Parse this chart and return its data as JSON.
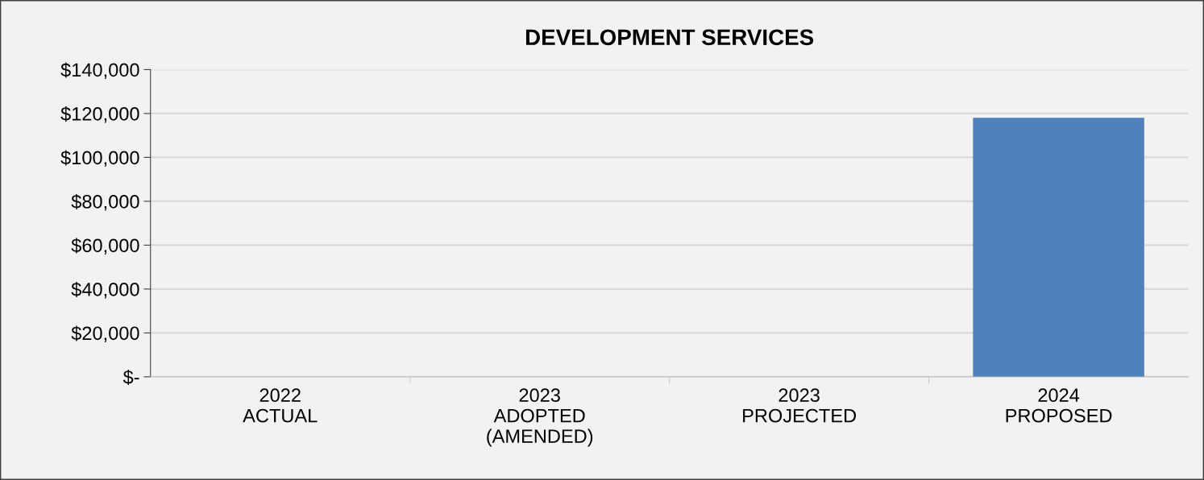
{
  "chart_data": {
    "type": "bar",
    "title": "DEVELOPMENT SERVICES",
    "categories": [
      "2022\nACTUAL",
      "2023\nADOPTED\n(AMENDED)",
      "2023\nPROJECTED",
      "2024\nPROPOSED"
    ],
    "values": [
      0,
      0,
      0,
      118000
    ],
    "color": "#4f81bd",
    "ylim": [
      0,
      140000
    ],
    "yticks": [
      {
        "value": 0,
        "label": "$-"
      },
      {
        "value": 20000,
        "label": "$20,000"
      },
      {
        "value": 40000,
        "label": "$40,000"
      },
      {
        "value": 60000,
        "label": "$60,000"
      },
      {
        "value": 80000,
        "label": "$80,000"
      },
      {
        "value": 100000,
        "label": "$100,000"
      },
      {
        "value": 120000,
        "label": "$120,000"
      },
      {
        "value": 140000,
        "label": "$140,000"
      }
    ],
    "grid": "y"
  }
}
